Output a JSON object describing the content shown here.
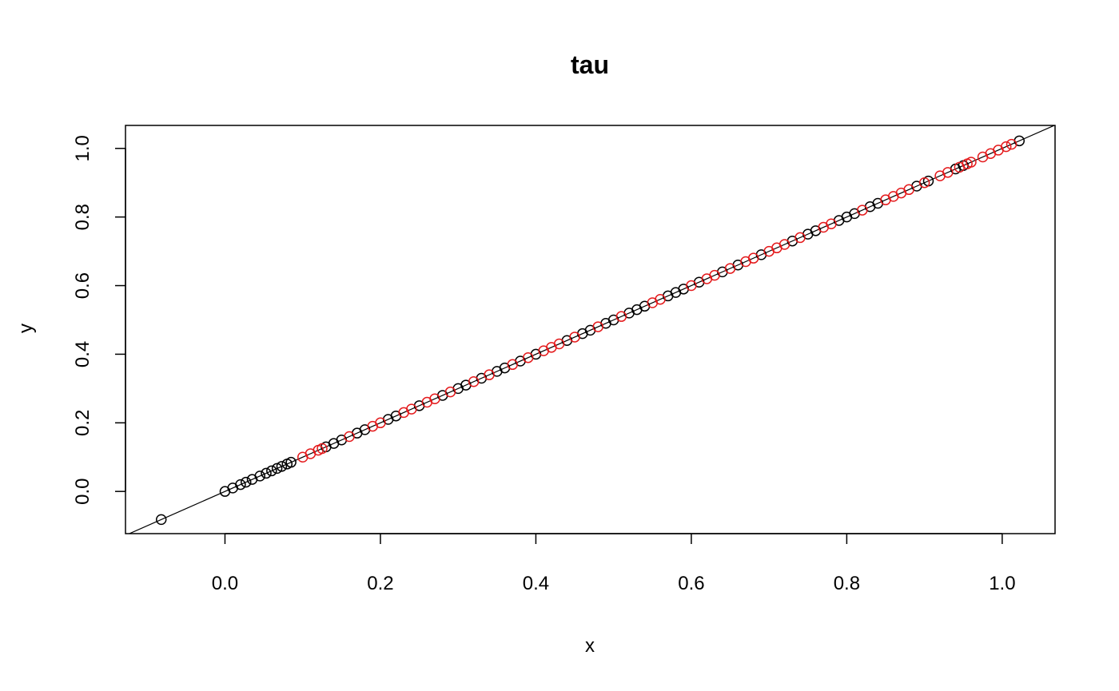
{
  "chart_data": {
    "type": "scatter",
    "title": "tau",
    "xlabel": "x",
    "ylabel": "y",
    "xlim": [
      -0.128,
      1.068
    ],
    "ylim": [
      -0.123,
      1.067
    ],
    "x_ticks": [
      0.0,
      0.2,
      0.4,
      0.6,
      0.8,
      1.0
    ],
    "x_tick_labels": [
      "0.0",
      "0.2",
      "0.4",
      "0.6",
      "0.8",
      "1.0"
    ],
    "y_ticks": [
      0.0,
      0.2,
      0.4,
      0.6,
      0.8,
      1.0
    ],
    "y_tick_labels": [
      "0.0",
      "0.2",
      "0.4",
      "0.6",
      "0.8",
      "1.0"
    ],
    "reference_line": {
      "intercept": 0,
      "slope": 1,
      "color": "#000000"
    },
    "grid": false,
    "legend": false,
    "series": [
      {
        "color": "#000000",
        "marker": "open-circle",
        "x": [
          -0.082,
          0.0,
          0.01,
          0.02,
          0.027,
          0.035,
          0.045,
          0.053,
          0.06,
          0.067,
          0.073,
          0.08,
          0.085,
          0.13,
          0.14,
          0.15,
          0.17,
          0.18,
          0.21,
          0.22,
          0.25,
          0.28,
          0.3,
          0.31,
          0.33,
          0.35,
          0.36,
          0.38,
          0.4,
          0.44,
          0.46,
          0.47,
          0.49,
          0.5,
          0.52,
          0.53,
          0.54,
          0.57,
          0.58,
          0.59,
          0.61,
          0.64,
          0.66,
          0.69,
          0.73,
          0.75,
          0.76,
          0.79,
          0.8,
          0.81,
          0.83,
          0.84,
          0.89,
          0.905,
          0.94,
          0.95,
          1.022
        ],
        "y": [
          -0.082,
          0.0,
          0.01,
          0.02,
          0.027,
          0.035,
          0.045,
          0.053,
          0.06,
          0.067,
          0.073,
          0.08,
          0.085,
          0.13,
          0.14,
          0.15,
          0.17,
          0.18,
          0.21,
          0.22,
          0.25,
          0.28,
          0.3,
          0.31,
          0.33,
          0.35,
          0.36,
          0.38,
          0.4,
          0.44,
          0.46,
          0.47,
          0.49,
          0.5,
          0.52,
          0.53,
          0.54,
          0.57,
          0.58,
          0.59,
          0.61,
          0.64,
          0.66,
          0.69,
          0.73,
          0.75,
          0.76,
          0.79,
          0.8,
          0.81,
          0.83,
          0.84,
          0.89,
          0.905,
          0.94,
          0.95,
          1.022
        ]
      },
      {
        "color": "#e41a1c",
        "marker": "open-circle",
        "x": [
          0.1,
          0.11,
          0.12,
          0.125,
          0.16,
          0.19,
          0.2,
          0.23,
          0.24,
          0.26,
          0.27,
          0.29,
          0.32,
          0.34,
          0.37,
          0.39,
          0.41,
          0.42,
          0.43,
          0.45,
          0.48,
          0.51,
          0.55,
          0.56,
          0.6,
          0.62,
          0.63,
          0.65,
          0.67,
          0.68,
          0.7,
          0.71,
          0.72,
          0.74,
          0.77,
          0.78,
          0.82,
          0.85,
          0.86,
          0.87,
          0.88,
          0.9,
          0.92,
          0.93,
          0.945,
          0.955,
          0.96,
          0.975,
          0.985,
          0.995,
          1.005,
          1.012
        ],
        "y": [
          0.1,
          0.11,
          0.12,
          0.125,
          0.16,
          0.19,
          0.2,
          0.23,
          0.24,
          0.26,
          0.27,
          0.29,
          0.32,
          0.34,
          0.37,
          0.39,
          0.41,
          0.42,
          0.43,
          0.45,
          0.48,
          0.51,
          0.55,
          0.56,
          0.6,
          0.62,
          0.63,
          0.65,
          0.67,
          0.68,
          0.7,
          0.71,
          0.72,
          0.74,
          0.77,
          0.78,
          0.82,
          0.85,
          0.86,
          0.87,
          0.88,
          0.9,
          0.92,
          0.93,
          0.945,
          0.955,
          0.96,
          0.975,
          0.985,
          0.995,
          1.005,
          1.012
        ]
      }
    ]
  }
}
